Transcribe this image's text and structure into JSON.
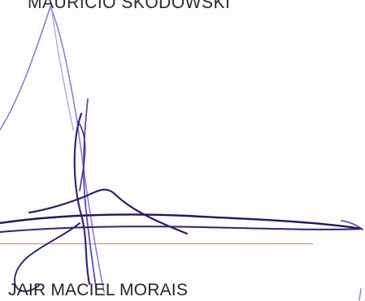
{
  "document": {
    "signer_top": "MAURICIO SKODOWSKI",
    "signer_bottom": "JAIR MACIEL MORAIS"
  },
  "colors": {
    "ink_dark": "#1e1a5c",
    "ink_violet": "#4a3aa8",
    "ink_light": "#8a7fd0",
    "rule": "#c98b6a"
  }
}
